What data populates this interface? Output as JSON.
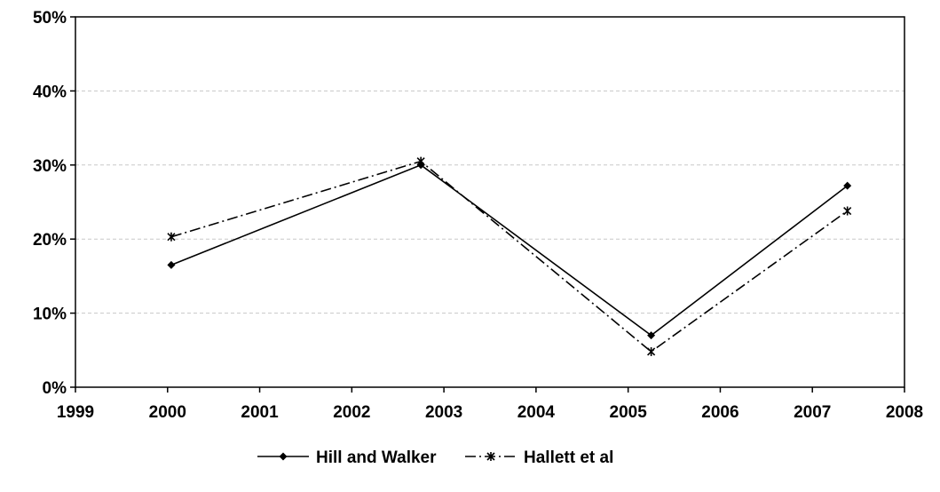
{
  "chart_data": {
    "type": "line",
    "title": "",
    "xlabel": "",
    "ylabel": "",
    "xlim": [
      1999,
      2008
    ],
    "ylim": [
      0,
      0.5
    ],
    "x_ticks": [
      "1999",
      "2000",
      "2001",
      "2002",
      "2003",
      "2004",
      "2005",
      "2006",
      "2007",
      "2008"
    ],
    "y_ticks": [
      "0%",
      "10%",
      "20%",
      "30%",
      "40%",
      "50%"
    ],
    "grid": "horizontal dashed",
    "legend_position": "bottom",
    "series": [
      {
        "name": "Hill and Walker",
        "style": "solid",
        "marker": "diamond",
        "color": "#000000",
        "x": [
          2000.04,
          2002.75,
          2005.25,
          2007.38
        ],
        "y": [
          0.165,
          0.3,
          0.07,
          0.272
        ]
      },
      {
        "name": "Hallett et al",
        "style": "dash-dot",
        "marker": "asterisk",
        "color": "#000000",
        "x": [
          2000.04,
          2002.75,
          2005.25,
          2007.38
        ],
        "y": [
          0.203,
          0.305,
          0.048,
          0.238
        ]
      }
    ]
  }
}
